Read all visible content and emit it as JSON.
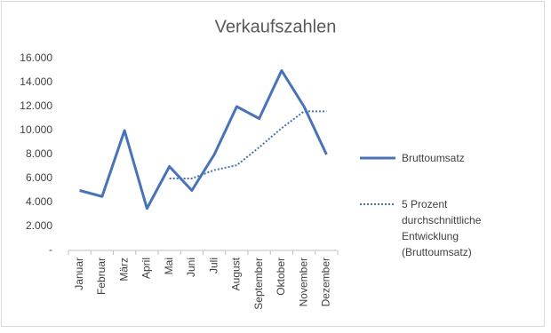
{
  "chart_data": {
    "type": "line",
    "title": "Verkaufszahlen",
    "categories": [
      "Januar",
      "Februar",
      "März",
      "April",
      "Mai",
      "Juni",
      "Juli",
      "August",
      "September",
      "Oktober",
      "November",
      "Dezember"
    ],
    "series": [
      {
        "name": "Bruttoumsatz",
        "color": "#4472c4",
        "style": "solid",
        "values": [
          5000,
          4500,
          10000,
          3500,
          7000,
          5000,
          8000,
          12000,
          11000,
          15000,
          12000,
          8000
        ]
      },
      {
        "name": "5 Prozent durchschnittliche Entwicklung (Bruttoumsatz)",
        "color": "#4472c4",
        "style": "dotted",
        "values": [
          null,
          null,
          null,
          null,
          6000,
          6000,
          6700,
          7100,
          8600,
          10200,
          11600,
          11600
        ]
      }
    ],
    "ylim": [
      0,
      16000
    ],
    "yticks": [
      {
        "value": 0,
        "label": "-"
      },
      {
        "value": 2000,
        "label": "2.000"
      },
      {
        "value": 4000,
        "label": "4.000"
      },
      {
        "value": 6000,
        "label": "6.000"
      },
      {
        "value": 8000,
        "label": "8.000"
      },
      {
        "value": 10000,
        "label": "10.000"
      },
      {
        "value": 12000,
        "label": "12.000"
      },
      {
        "value": 14000,
        "label": "14.000"
      },
      {
        "value": 16000,
        "label": "16.000"
      }
    ],
    "grid": false,
    "legend": "right"
  }
}
